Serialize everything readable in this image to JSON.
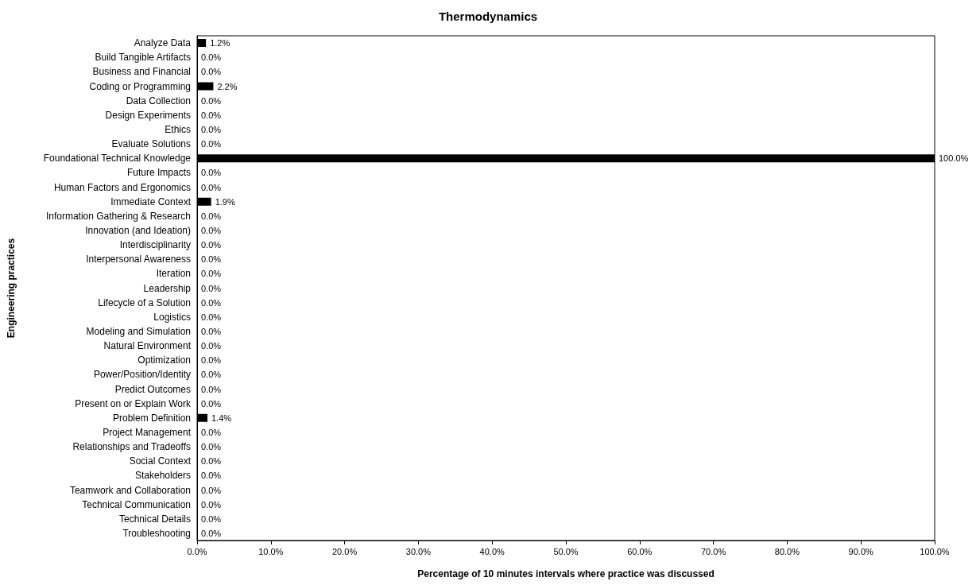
{
  "chart_data": {
    "type": "bar",
    "orientation": "horizontal",
    "title": "Thermodynamics",
    "xlabel": "Percentage of 10 minutes intervals where practice was discussed",
    "ylabel": "Engineering practices",
    "categories": [
      "Analyze Data",
      "Build Tangible Artifacts",
      "Business and Financial",
      "Coding or Programming",
      "Data Collection",
      "Design Experiments",
      "Ethics",
      "Evaluate Solutions",
      "Foundational Technical Knowledge",
      "Future Impacts",
      "Human Factors and Ergonomics",
      "Immediate Context",
      "Information Gathering & Research",
      "Innovation (and Ideation)",
      "Interdisciplinarity",
      "Interpersonal Awareness",
      "Iteration",
      "Leadership",
      "Lifecycle of a Solution",
      "Logistics",
      "Modeling and Simulation",
      "Natural Environment",
      "Optimization",
      "Power/Position/Identity",
      "Predict Outcomes",
      "Present on or Explain Work",
      "Problem Definition",
      "Project Management",
      "Relationships and Tradeoffs",
      "Social Context",
      "Stakeholders",
      "Teamwork and Collaboration",
      "Technical Communication",
      "Technical Details",
      "Troubleshooting"
    ],
    "values": [
      1.2,
      0,
      0,
      2.2,
      0,
      0,
      0,
      0,
      100,
      0,
      0,
      1.9,
      0,
      0,
      0,
      0,
      0,
      0,
      0,
      0,
      0,
      0,
      0,
      0,
      0,
      0,
      1.4,
      0,
      0,
      0,
      0,
      0,
      0,
      0,
      0
    ],
    "value_labels": [
      "1.2%",
      "0.0%",
      "0.0%",
      "2.2%",
      "0.0%",
      "0.0%",
      "0.0%",
      "0.0%",
      "100.0%",
      "0.0%",
      "0.0%",
      "1.9%",
      "0.0%",
      "0.0%",
      "0.0%",
      "0.0%",
      "0.0%",
      "0.0%",
      "0.0%",
      "0.0%",
      "0.0%",
      "0.0%",
      "0.0%",
      "0.0%",
      "0.0%",
      "0.0%",
      "1.4%",
      "0.0%",
      "0.0%",
      "0.0%",
      "0.0%",
      "0.0%",
      "0.0%",
      "0.0%",
      "0.0%"
    ],
    "color": "#000000",
    "xlim": [
      0,
      100
    ],
    "xticks": [
      {
        "value": 0,
        "label": "0.0%"
      },
      {
        "value": 10,
        "label": "10.0%"
      },
      {
        "value": 20,
        "label": "20.0%"
      },
      {
        "value": 30,
        "label": "30.0%"
      },
      {
        "value": 40,
        "label": "40.0%"
      },
      {
        "value": 50,
        "label": "50.0%"
      },
      {
        "value": 60,
        "label": "60.0%"
      },
      {
        "value": 70,
        "label": "70.0%"
      },
      {
        "value": 80,
        "label": "80.0%"
      },
      {
        "value": 90,
        "label": "90.0%"
      },
      {
        "value": 100,
        "label": "100.0%"
      }
    ],
    "grid": false
  }
}
